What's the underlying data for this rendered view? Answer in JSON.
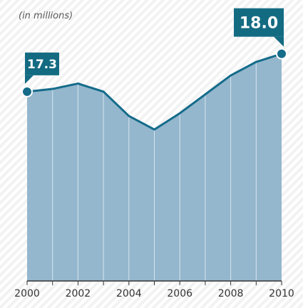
{
  "chart_data": {
    "type": "area",
    "unit_note": "(in millions)",
    "x": [
      2000,
      2001,
      2002,
      2003,
      2004,
      2005,
      2006,
      2007,
      2008,
      2009,
      2010
    ],
    "series": [
      {
        "values": [
          17.3,
          17.35,
          17.45,
          17.3,
          16.85,
          16.6,
          16.9,
          17.25,
          17.6,
          17.85,
          18.0
        ]
      }
    ],
    "x_tick_labels": [
      "2000",
      "2002",
      "2004",
      "2006",
      "2008",
      "2010"
    ],
    "callouts": [
      {
        "year": 2000,
        "text": "17.3"
      },
      {
        "year": 2010,
        "text": "18.0"
      }
    ],
    "xlim": [
      2000,
      2010
    ],
    "ylim": [
      13.8,
      18.6
    ],
    "colors": {
      "area_fill": "#94b7cd",
      "line": "#146b8a",
      "marker": "#146b8a",
      "callout_bg": "#136b82",
      "background_stripes": "#f2f2f2",
      "divider": "#d7e5ee",
      "axis": "#333333"
    },
    "grid": false,
    "background": "diagonal-stripes"
  }
}
